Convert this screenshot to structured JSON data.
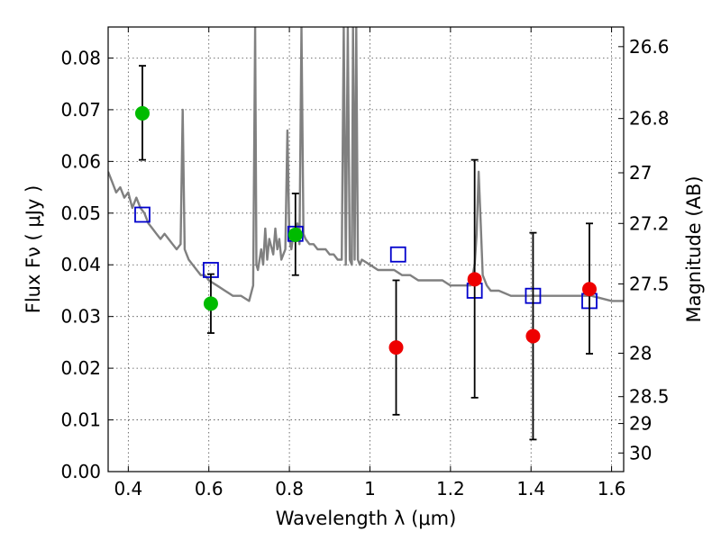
{
  "chart_data": {
    "type": "scatter",
    "title": "",
    "xlabel": "Wavelength  λ (μm)",
    "ylabel": "Flux  Fν  ( μJy )",
    "y2label": "Magnitude (AB)",
    "xlim": [
      0.35,
      1.63
    ],
    "ylim": [
      0.0,
      0.086
    ],
    "grid": true,
    "x_ticks": [
      0.4,
      0.6,
      0.8,
      1.0,
      1.2,
      1.4,
      1.6
    ],
    "x_tick_labels": [
      "0.4",
      "0.6",
      "0.8",
      "1",
      "1.2",
      "1.4",
      "1.6"
    ],
    "y_ticks": [
      0.0,
      0.01,
      0.02,
      0.03,
      0.04,
      0.05,
      0.06,
      0.07,
      0.08
    ],
    "y_tick_labels": [
      "0.00",
      "0.01",
      "0.02",
      "0.03",
      "0.04",
      "0.05",
      "0.06",
      "0.07",
      "0.08"
    ],
    "mag_ticks": [
      {
        "flux": 0.0822,
        "label": "26.6"
      },
      {
        "flux": 0.0683,
        "label": "26.8"
      },
      {
        "flux": 0.0578,
        "label": "27"
      },
      {
        "flux": 0.048,
        "label": "27.2"
      },
      {
        "flux": 0.0363,
        "label": "27.5"
      },
      {
        "flux": 0.0229,
        "label": "28"
      },
      {
        "flux": 0.0145,
        "label": "28.5"
      },
      {
        "flux": 0.0093,
        "label": "29"
      },
      {
        "flux": 0.0036,
        "label": "30"
      }
    ],
    "series": [
      {
        "kind": "model_spectrum",
        "color": "#808080",
        "x": [
          0.35,
          0.36,
          0.37,
          0.38,
          0.39,
          0.4,
          0.41,
          0.42,
          0.43,
          0.44,
          0.45,
          0.46,
          0.47,
          0.48,
          0.49,
          0.5,
          0.51,
          0.52,
          0.53,
          0.535,
          0.54,
          0.545,
          0.55,
          0.56,
          0.57,
          0.58,
          0.59,
          0.6,
          0.62,
          0.64,
          0.66,
          0.68,
          0.7,
          0.71,
          0.715,
          0.718,
          0.722,
          0.73,
          0.735,
          0.74,
          0.745,
          0.75,
          0.76,
          0.765,
          0.77,
          0.775,
          0.78,
          0.785,
          0.79,
          0.795,
          0.8,
          0.805,
          0.81,
          0.82,
          0.825,
          0.83,
          0.835,
          0.84,
          0.85,
          0.86,
          0.87,
          0.88,
          0.89,
          0.9,
          0.91,
          0.92,
          0.93,
          0.935,
          0.94,
          0.945,
          0.95,
          0.955,
          0.958,
          0.962,
          0.966,
          0.97,
          0.975,
          0.98,
          1.0,
          1.02,
          1.04,
          1.06,
          1.08,
          1.1,
          1.12,
          1.15,
          1.18,
          1.2,
          1.22,
          1.24,
          1.25,
          1.26,
          1.265,
          1.27,
          1.275,
          1.28,
          1.29,
          1.3,
          1.32,
          1.35,
          1.4,
          1.45,
          1.5,
          1.55,
          1.6,
          1.63
        ],
        "y": [
          0.058,
          0.056,
          0.054,
          0.055,
          0.053,
          0.054,
          0.051,
          0.053,
          0.051,
          0.05,
          0.048,
          0.047,
          0.046,
          0.045,
          0.046,
          0.045,
          0.044,
          0.043,
          0.044,
          0.07,
          0.043,
          0.042,
          0.041,
          0.04,
          0.039,
          0.038,
          0.038,
          0.037,
          0.036,
          0.035,
          0.034,
          0.034,
          0.033,
          0.036,
          0.086,
          0.04,
          0.039,
          0.043,
          0.04,
          0.047,
          0.041,
          0.045,
          0.042,
          0.047,
          0.043,
          0.045,
          0.041,
          0.042,
          0.043,
          0.066,
          0.045,
          0.043,
          0.046,
          0.048,
          0.044,
          0.086,
          0.046,
          0.045,
          0.044,
          0.044,
          0.043,
          0.043,
          0.043,
          0.042,
          0.042,
          0.041,
          0.041,
          0.086,
          0.04,
          0.086,
          0.041,
          0.04,
          0.086,
          0.041,
          0.086,
          0.041,
          0.04,
          0.041,
          0.04,
          0.039,
          0.039,
          0.039,
          0.038,
          0.038,
          0.037,
          0.037,
          0.037,
          0.036,
          0.036,
          0.036,
          0.036,
          0.04,
          0.046,
          0.058,
          0.048,
          0.038,
          0.036,
          0.035,
          0.035,
          0.034,
          0.034,
          0.034,
          0.034,
          0.034,
          0.033,
          0.033
        ]
      },
      {
        "kind": "model_photometry",
        "color": "#0000cc",
        "marker": "open-square",
        "x": [
          0.435,
          0.605,
          0.815,
          1.07,
          1.26,
          1.405,
          1.545
        ],
        "y": [
          0.0497,
          0.039,
          0.046,
          0.042,
          0.035,
          0.034,
          0.033
        ]
      },
      {
        "kind": "observed_optical",
        "color": "#00bb00",
        "marker": "filled-circle",
        "x": [
          0.435,
          0.605,
          0.815
        ],
        "y": [
          0.0693,
          0.0325,
          0.0458
        ],
        "yerr_low": [
          0.0603,
          0.0268,
          0.038
        ],
        "yerr_high": [
          0.0785,
          0.0382,
          0.0538
        ]
      },
      {
        "kind": "observed_nir",
        "color": "#ee0000",
        "marker": "filled-circle",
        "x": [
          1.065,
          1.26,
          1.405,
          1.545
        ],
        "y": [
          0.024,
          0.0372,
          0.0262,
          0.0353
        ],
        "yerr_low": [
          0.011,
          0.0143,
          0.0062,
          0.0228
        ],
        "yerr_high": [
          0.037,
          0.0603,
          0.0462,
          0.048
        ]
      }
    ]
  }
}
